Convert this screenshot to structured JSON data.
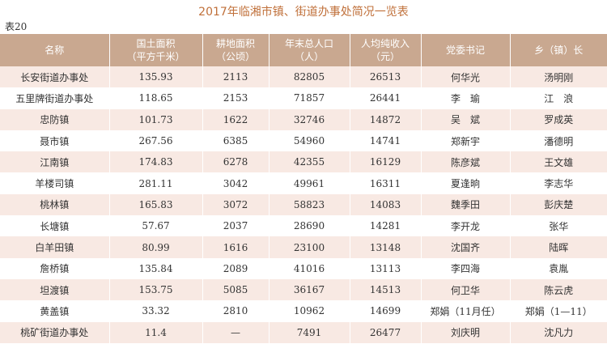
{
  "title": "2017年临湘市镇、街道办事处简况一览表",
  "table_label": "表20",
  "table": {
    "header": [
      [
        "名称"
      ],
      [
        "国土面积",
        "（平方千米）"
      ],
      [
        "耕地面积",
        "（公顷）"
      ],
      [
        "年末总人口",
        "（人）"
      ],
      [
        "人均纯收入",
        "（元）"
      ],
      [
        "党委书记"
      ],
      [
        "乡（镇）长"
      ]
    ],
    "rows": [
      [
        "长安街道办事处",
        "135.93",
        "2113",
        "82805",
        "26513",
        "何华光",
        "汤明刚"
      ],
      [
        "五里牌街道办事处",
        "118.65",
        "2153",
        "71857",
        "26441",
        "李　瑜",
        "江　浪"
      ],
      [
        "忠防镇",
        "101.73",
        "1622",
        "32746",
        "14872",
        "吴　斌",
        "罗成英"
      ],
      [
        "聂市镇",
        "267.56",
        "6385",
        "54960",
        "14741",
        "郑新宇",
        "潘德明"
      ],
      [
        "江南镇",
        "174.83",
        "6278",
        "42355",
        "16129",
        "陈彦斌",
        "王文雄"
      ],
      [
        "羊楼司镇",
        "281.11",
        "3042",
        "49961",
        "16311",
        "夏逢晌",
        "李志华"
      ],
      [
        "桃林镇",
        "165.83",
        "3072",
        "58823",
        "14083",
        "魏季田",
        "彭庆楚"
      ],
      [
        "长塘镇",
        "57.67",
        "2037",
        "28690",
        "14281",
        "李开龙",
        "张华"
      ],
      [
        "白羊田镇",
        "80.99",
        "1616",
        "23100",
        "13148",
        "沈国齐",
        "陆晖"
      ],
      [
        "詹桥镇",
        "135.84",
        "2089",
        "41016",
        "13113",
        "李四海",
        "袁胤"
      ],
      [
        "坦渡镇",
        "153.75",
        "5085",
        "36167",
        "14513",
        "何卫华",
        "陈云虎"
      ],
      [
        "黄盖镇",
        "33.32",
        "2810",
        "10962",
        "14699",
        "郑娟（11月任）",
        "郑娟（1—11）"
      ],
      [
        "桃矿街道办事处",
        "11.4",
        "—",
        "7491",
        "26477",
        "刘庆明",
        "沈凡力"
      ]
    ]
  }
}
